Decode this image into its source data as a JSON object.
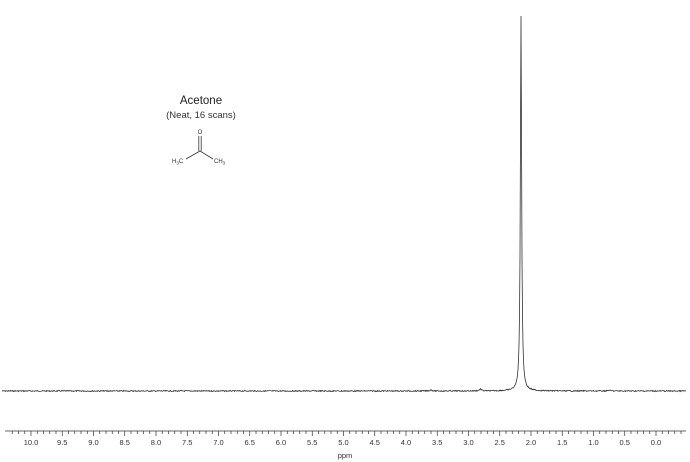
{
  "chart_data": {
    "type": "line",
    "title": "Acetone",
    "subtitle": "(Neat, 16 scans)",
    "xlabel": "ppm",
    "ylabel": "",
    "xlim": [
      10.3,
      -0.5
    ],
    "x_reversed": true,
    "grid": false,
    "x_ticks": [
      "10.0",
      "9.5",
      "9.0",
      "8.5",
      "8.0",
      "7.5",
      "7.0",
      "6.5",
      "6.0",
      "5.5",
      "5.0",
      "4.5",
      "4.0",
      "3.5",
      "3.0",
      "2.5",
      "2.0",
      "1.5",
      "1.0",
      "0.5",
      "0.0"
    ],
    "series": [
      {
        "peaks": [
          {
            "ppm": 2.16,
            "relative_height": 1.0
          },
          {
            "ppm": 2.81,
            "relative_height": 0.005
          },
          {
            "ppm": 3.6,
            "relative_height": 0.003
          },
          {
            "ppm": 0.75,
            "relative_height": 0.002
          }
        ]
      }
    ],
    "structure": {
      "name": "Acetone",
      "atom_labels": {
        "oxygen": "O",
        "left_methyl": "H",
        "left_methyl_sub": "3",
        "left_methyl_end": "C",
        "right_methyl": "CH",
        "right_methyl_sub": "3"
      }
    }
  }
}
